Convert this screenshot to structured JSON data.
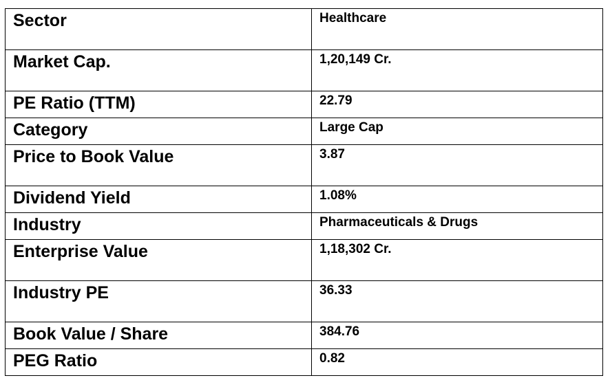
{
  "rows": [
    {
      "label": "Sector",
      "value": "Healthcare"
    },
    {
      "label": "Market Cap.",
      "value": "1,20,149 Cr."
    },
    {
      "label": "PE Ratio (TTM)",
      "value": "22.79"
    },
    {
      "label": "Category",
      "value": "Large Cap"
    },
    {
      "label": "Price to Book Value",
      "value": "3.87"
    },
    {
      "label": "Dividend Yield",
      "value": "1.08%"
    },
    {
      "label": "Industry",
      "value": "Pharmaceuticals & Drugs"
    },
    {
      "label": "Enterprise Value",
      "value": "1,18,302 Cr."
    },
    {
      "label": "Industry PE",
      "value": "36.33"
    },
    {
      "label": "Book Value / Share",
      "value": "384.76"
    },
    {
      "label": "PEG Ratio",
      "value": "0.82"
    }
  ]
}
